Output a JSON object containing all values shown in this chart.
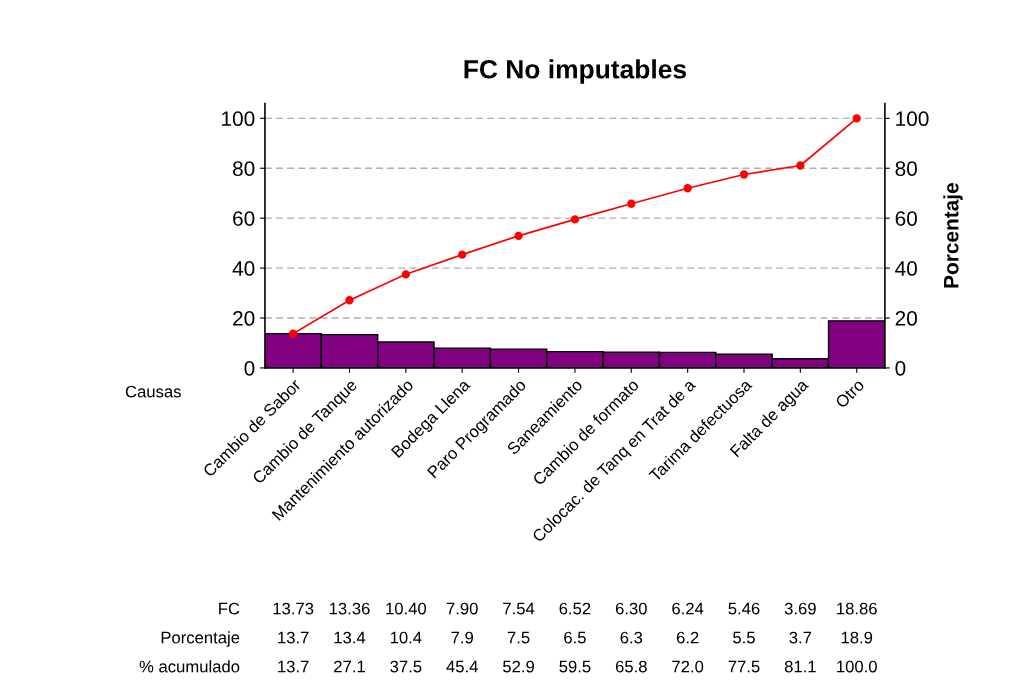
{
  "chart_data": {
    "type": "bar",
    "title": "FC No imputables",
    "xlabel": "Causas",
    "y2label": "Porcentaje",
    "categories": [
      "Cambio de Sabor",
      "Cambio de Tanque",
      "Mantenimiento autorizado",
      "Bodega Llena",
      "Paro Programado",
      "Saneamiento",
      "Cambio de formato",
      "Colocac. de Tanq en Trat de a",
      "Tarima defectuosa",
      "Falta de agua",
      "Otro"
    ],
    "series": [
      {
        "color": "#800080",
        "values": [
          13.73,
          13.36,
          10.4,
          7.9,
          7.54,
          6.52,
          6.3,
          6.24,
          5.46,
          3.69,
          18.86
        ],
        "value_labels": [
          "13.73",
          "13.36",
          "10.40",
          "7.90",
          "7.54",
          "6.52",
          "6.30",
          "6.24",
          "5.46",
          "3.69",
          "18.86"
        ]
      },
      {
        "type": "line",
        "color": "#ff0000",
        "marker": "circle",
        "values": [
          13.7,
          27.1,
          37.5,
          45.4,
          52.9,
          59.5,
          65.8,
          72.0,
          77.5,
          81.1,
          100.0
        ],
        "value_labels": [
          "13.7",
          "27.1",
          "37.5",
          "45.4",
          "52.9",
          "59.5",
          "65.8",
          "72.0",
          "77.5",
          "81.1",
          "100.0"
        ]
      }
    ],
    "annotations": [
      "FC",
      "Porcentaje",
      "% acumulado",
      "13.7",
      "13.4",
      "10.4",
      "7.9",
      "7.5",
      "6.5",
      "6.3",
      "6.2",
      "5.5",
      "3.7",
      "18.9"
    ],
    "ylim": [
      0,
      106
    ],
    "yticks": [
      0,
      20,
      40,
      60,
      80,
      100
    ],
    "y2lim": [
      0,
      106
    ],
    "y2ticks": [
      0,
      20,
      40,
      60,
      80,
      100
    ],
    "grid": "y"
  }
}
